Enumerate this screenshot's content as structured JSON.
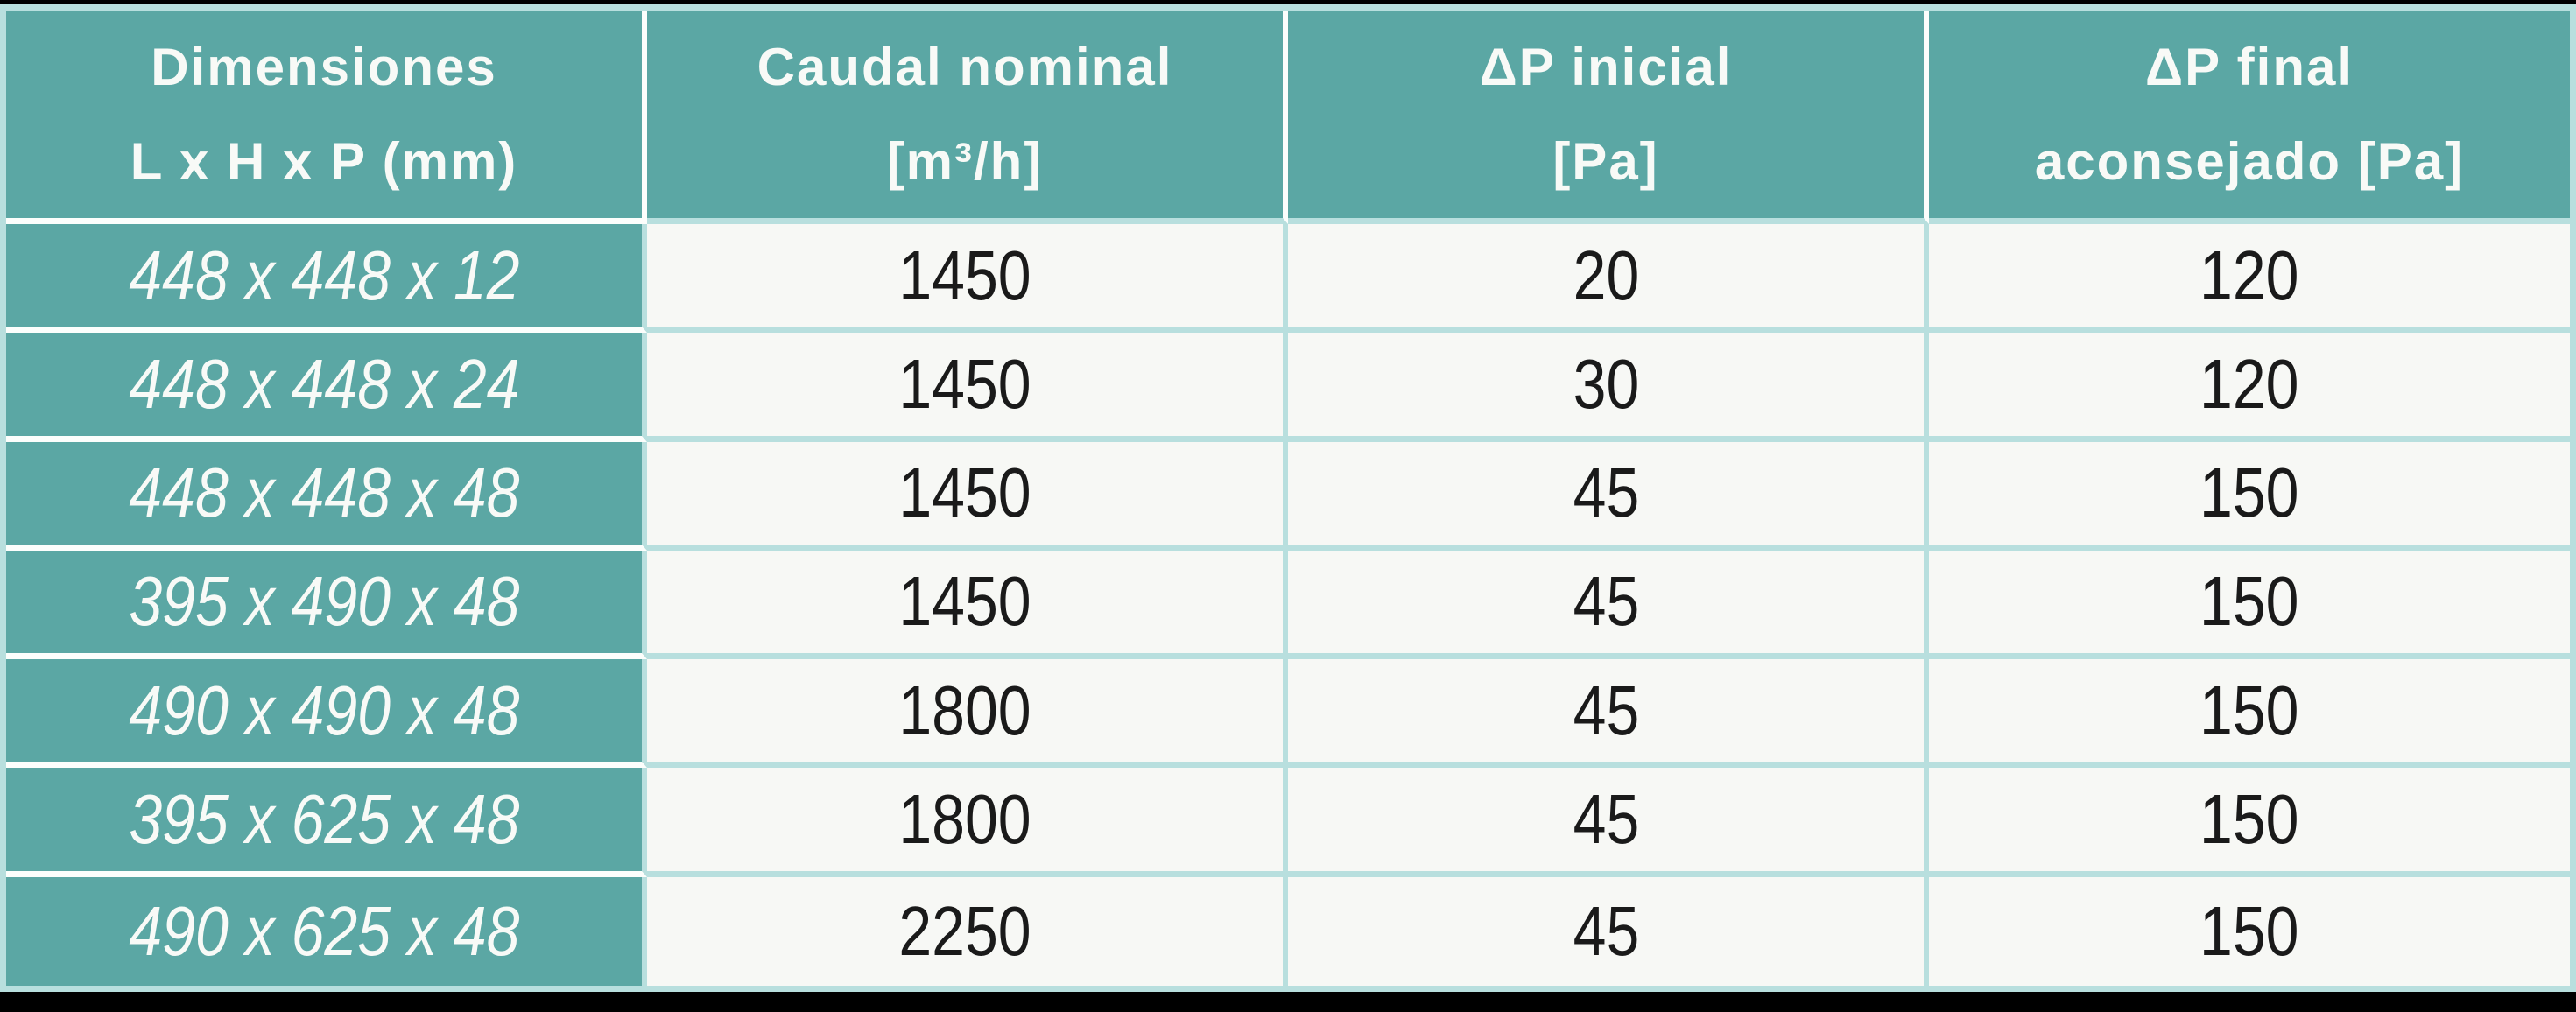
{
  "colors": {
    "header_teal": "#5BA7A4",
    "border_light_teal": "#B8DFDE",
    "cell_off_white": "#F7F8F5",
    "separator_white": "#FCFEFC",
    "header_text": "#F8FAF7",
    "cell_text": "#1A1A1A",
    "page_black": "#000000"
  },
  "table": {
    "headers": [
      {
        "line1": "Dimensiones",
        "line2": "L x H x P (mm)"
      },
      {
        "line1": "Caudal nominal",
        "line2": "[m³/h]"
      },
      {
        "line1": "ΔP inicial",
        "line2": "[Pa]"
      },
      {
        "line1": "ΔP final",
        "line2": "aconsejado [Pa]"
      }
    ],
    "rows": [
      {
        "dimensions": "448 x 448 x 12",
        "caudal_nominal": "1450",
        "dp_inicial": "20",
        "dp_final": "120"
      },
      {
        "dimensions": "448 x 448 x 24",
        "caudal_nominal": "1450",
        "dp_inicial": "30",
        "dp_final": "120"
      },
      {
        "dimensions": "448 x 448 x 48",
        "caudal_nominal": "1450",
        "dp_inicial": "45",
        "dp_final": "150"
      },
      {
        "dimensions": "395 x 490 x 48",
        "caudal_nominal": "1450",
        "dp_inicial": "45",
        "dp_final": "150"
      },
      {
        "dimensions": "490 x 490 x 48",
        "caudal_nominal": "1800",
        "dp_inicial": "45",
        "dp_final": "150"
      },
      {
        "dimensions": "395 x 625 x 48",
        "caudal_nominal": "1800",
        "dp_inicial": "45",
        "dp_final": "150"
      },
      {
        "dimensions": "490 x 625 x 48",
        "caudal_nominal": "2250",
        "dp_inicial": "45",
        "dp_final": "150"
      }
    ]
  },
  "chart_data": {
    "type": "table",
    "title": "",
    "columns": [
      "Dimensiones L x H x P (mm)",
      "Caudal nominal [m³/h]",
      "ΔP inicial [Pa]",
      "ΔP final aconsejado [Pa]"
    ],
    "rows": [
      [
        "448 x 448 x 12",
        1450,
        20,
        120
      ],
      [
        "448 x 448 x 24",
        1450,
        30,
        120
      ],
      [
        "448 x 448 x 48",
        1450,
        45,
        150
      ],
      [
        "395 x 490 x 48",
        1450,
        45,
        150
      ],
      [
        "490 x 490 x 48",
        1800,
        45,
        150
      ],
      [
        "395 x 625 x 48",
        1800,
        45,
        150
      ],
      [
        "490 x 625 x 48",
        2250,
        45,
        150
      ]
    ]
  }
}
